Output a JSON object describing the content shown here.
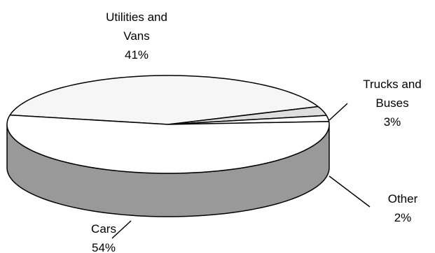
{
  "chart_data": {
    "type": "pie",
    "style": "3d",
    "title": "",
    "slices": [
      {
        "label_lines": [
          "Utilities and",
          "Vans"
        ],
        "percent_label": "41%",
        "value": 41,
        "color": "#f6f6f6",
        "side_color": "#c8c8c8"
      },
      {
        "label_lines": [
          "Trucks and",
          "Buses"
        ],
        "percent_label": "3%",
        "value": 3,
        "color": "#dedede",
        "side_color": "#b4b4b4"
      },
      {
        "label_lines": [
          "Other"
        ],
        "percent_label": "2%",
        "value": 2,
        "color": "#ffffff",
        "side_color": "#a8a8a8"
      },
      {
        "label_lines": [
          "Cars"
        ],
        "percent_label": "54%",
        "value": 54,
        "color": "#ffffff",
        "side_color": "#999999"
      }
    ],
    "legend": "none"
  }
}
